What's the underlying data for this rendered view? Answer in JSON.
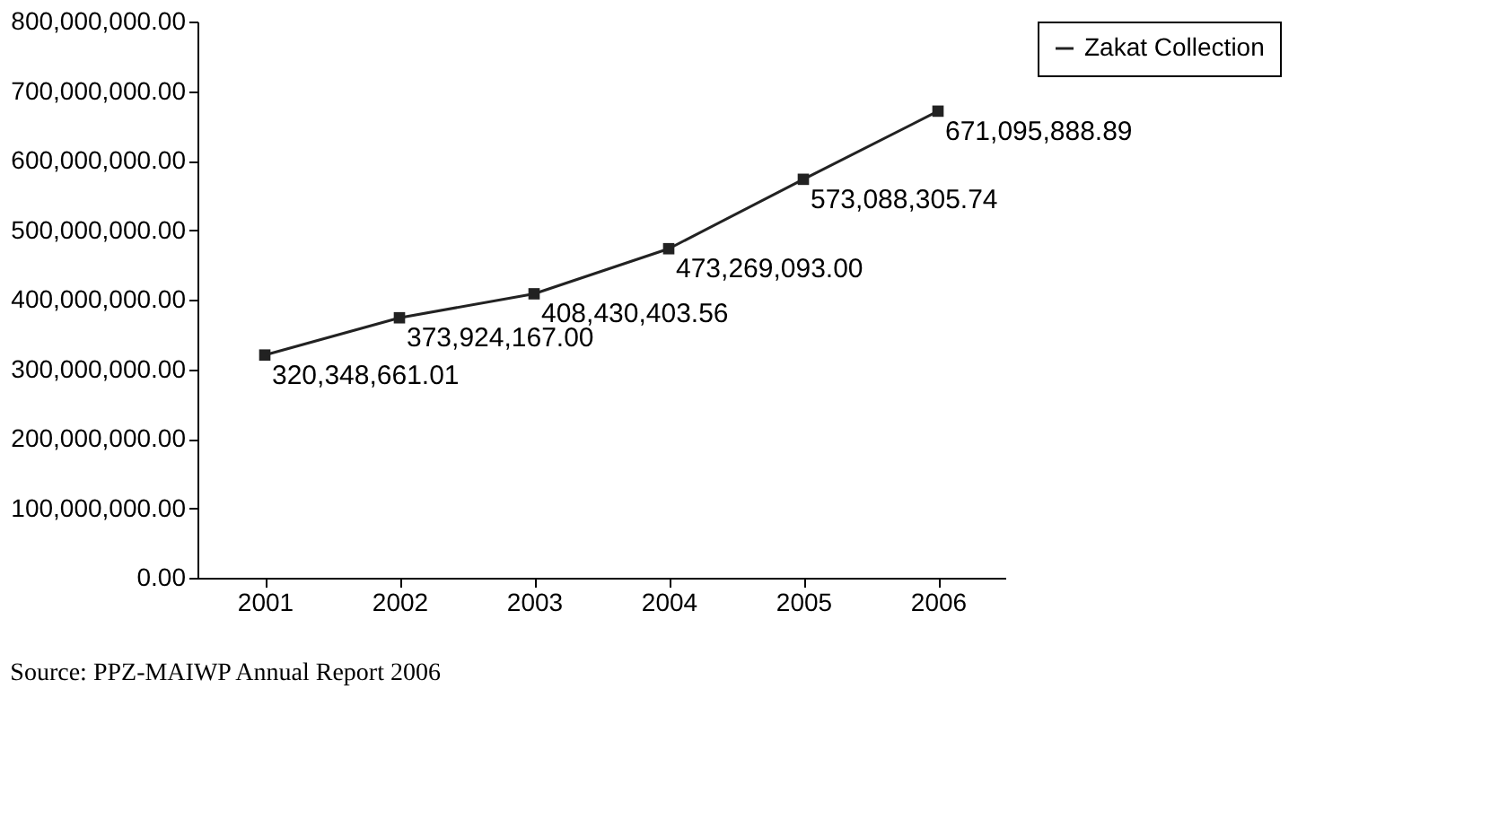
{
  "chart_data": {
    "type": "line",
    "categories": [
      "2001",
      "2002",
      "2003",
      "2004",
      "2005",
      "2006"
    ],
    "series": [
      {
        "name": "Zakat Collection",
        "color": "#222222",
        "values": [
          320348661.01,
          373924167.0,
          408430403.56,
          473269093.0,
          573088305.74,
          671095888.89
        ],
        "value_labels": [
          "320,348,661.01",
          "373,924,167.00",
          "408,430,403.56",
          "473,269,093.00",
          "573,088,305.74",
          "671,095,888.89"
        ]
      }
    ],
    "ylim": [
      0,
      800000000
    ],
    "yticks": [
      {
        "value": 0,
        "label": "0.00"
      },
      {
        "value": 100000000,
        "label": "100,000,000.00"
      },
      {
        "value": 200000000,
        "label": "200,000,000.00"
      },
      {
        "value": 300000000,
        "label": "300,000,000.00"
      },
      {
        "value": 400000000,
        "label": "400,000,000.00"
      },
      {
        "value": 500000000,
        "label": "500,000,000.00"
      },
      {
        "value": 600000000,
        "label": "600,000,000.00"
      },
      {
        "value": 700000000,
        "label": "700,000,000.00"
      },
      {
        "value": 800000000,
        "label": "800,000,000.00"
      }
    ],
    "marker": "square",
    "line_style": "solid",
    "grid": false,
    "legend": "right",
    "annotations": [
      "Source: PPZ-MAIWP Annual Report 2006"
    ]
  }
}
